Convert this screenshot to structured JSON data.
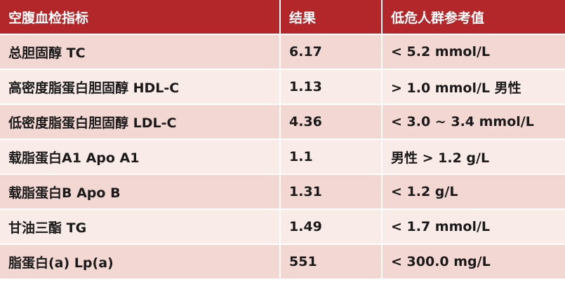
{
  "table": {
    "header": [
      "空腹血检指标",
      "结果",
      "低危人群参考值"
    ],
    "rows": [
      [
        "总胆固醇 TC",
        "6.17",
        "< 5.2 mmol/L"
      ],
      [
        "高密度脂蛋白胆固醇 HDL-C",
        "1.13",
        "> 1.0 mmol/L 男性"
      ],
      [
        "低密度脂蛋白胆固醇 LDL-C",
        "4.36",
        "< 3.0 ~ 3.4 mmol/L"
      ],
      [
        "载脂蛋白A1 Apo A1",
        "1.1",
        "男性 > 1.2 g/L"
      ],
      [
        "载脂蛋白B Apo B",
        "1.31",
        "< 1.2 g/L"
      ],
      [
        "甘油三酯 TG",
        "1.49",
        "< 1.7 mmol/L"
      ],
      [
        "脂蛋白(a) Lp(a)",
        "551",
        "< 300.0 mg/L"
      ]
    ]
  }
}
